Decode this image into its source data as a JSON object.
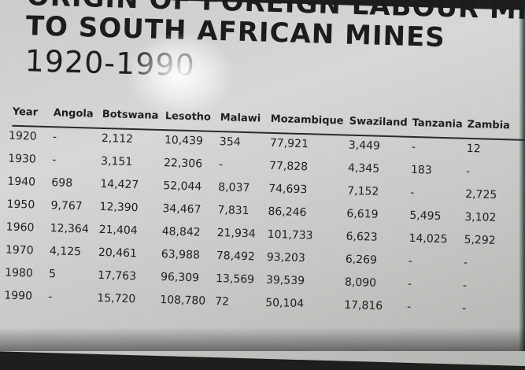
{
  "sign": {
    "title_line1": "ORIGIN OF FOREIGN LABOUR MIGRATION",
    "title_line2": "TO SOUTH AFRICAN MINES",
    "title_line3": "1920-1990"
  },
  "table": {
    "columns": [
      "Year",
      "Angola",
      "Botswana",
      "Lesotho",
      "Malawi",
      "Mozambique",
      "Swaziland",
      "Tanzania",
      "Zambia"
    ],
    "rows": [
      [
        "1920",
        "-",
        "2,112",
        "10,439",
        "354",
        "77,921",
        "3,449",
        "-",
        "12"
      ],
      [
        "1930",
        "-",
        "3,151",
        "22,306",
        "-",
        "77,828",
        "4,345",
        "183",
        "-"
      ],
      [
        "1940",
        "698",
        "14,427",
        "52,044",
        "8,037",
        "74,693",
        "7,152",
        "-",
        "2,725"
      ],
      [
        "1950",
        "9,767",
        "12,390",
        "34,467",
        "7,831",
        "86,246",
        "6,619",
        "5,495",
        "3,102"
      ],
      [
        "1960",
        "12,364",
        "21,404",
        "48,842",
        "21,934",
        "101,733",
        "6,623",
        "14,025",
        "5,292"
      ],
      [
        "1970",
        "4,125",
        "20,461",
        "63,988",
        "78,492",
        "93,203",
        "6,269",
        "-",
        "-"
      ],
      [
        "1980",
        "5",
        "17,763",
        "96,309",
        "13,569",
        "39,539",
        "8,090",
        "-",
        "-"
      ],
      [
        "1990",
        "-",
        "15,720",
        "108,780",
        "72",
        "50,104",
        "17,816",
        "-",
        "-"
      ]
    ]
  }
}
